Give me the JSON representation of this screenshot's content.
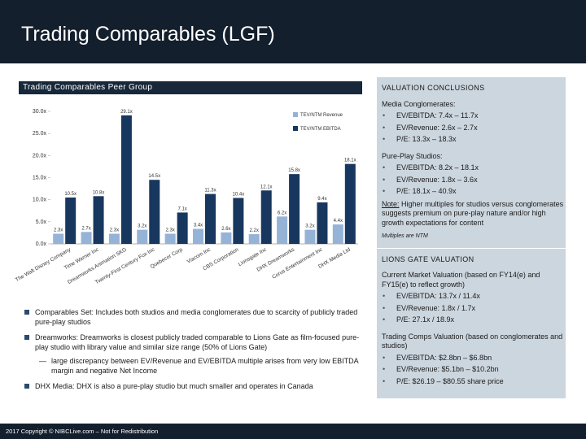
{
  "header": {
    "title": "Trading Comparables (LGF)"
  },
  "chart_data": {
    "type": "bar",
    "title": "Trading Comparables Peer Group",
    "categories": [
      "The Walt Disney Company",
      "Time Warner Inc",
      "Dreamworks Animation SKG",
      "Twenty-First Century Fox Inc",
      "Quebecor Corp",
      "Viacom Inc",
      "CBS Corporation",
      "Lionsgate Inc",
      "DHX Dreamworks",
      "Corus Entertainment Inc",
      "DHX Media Ltd"
    ],
    "series": [
      {
        "name": "TEV/NTM Revenue",
        "color": "#95b3d7",
        "values": [
          2.3,
          2.7,
          2.3,
          3.2,
          2.3,
          3.4,
          2.6,
          2.2,
          6.2,
          3.2,
          4.4
        ],
        "value_labels": [
          "2.3x",
          "2.7x",
          "2.3x",
          "3.2x",
          "2.3x",
          "3.4x",
          "2.6x",
          "2.2x",
          "6.2x",
          "3.2x",
          "4.4x"
        ]
      },
      {
        "name": "TEV/NTM EBITDA",
        "color": "#17375e",
        "values": [
          10.5,
          10.8,
          29.1,
          14.5,
          7.1,
          11.3,
          10.4,
          12.1,
          15.8,
          9.4,
          18.1
        ],
        "value_labels": [
          "10.5x",
          "10.8x",
          "29.1x",
          "14.5x",
          "7.1x",
          "11.3x",
          "10.4x",
          "12.1x",
          "15.8x",
          "9.4x",
          "18.1x"
        ]
      }
    ],
    "ylim": [
      0,
      30
    ],
    "yticks": [
      {
        "value": 0,
        "label": "0.0x"
      },
      {
        "value": 5,
        "label": "5.0x"
      },
      {
        "value": 10,
        "label": "10.0x"
      },
      {
        "value": 15,
        "label": "15.0x"
      },
      {
        "value": 20,
        "label": "20.0x"
      },
      {
        "value": 25,
        "label": "25.0x"
      },
      {
        "value": 30,
        "label": "30.0x"
      }
    ],
    "legend": "top-right"
  },
  "notes": [
    {
      "text": "Comparables Set: Includes both studios and media conglomerates due to scarcity of publicly traded pure-play studios"
    },
    {
      "text": "Dreamworks: Dreamworks is closest publicly traded comparable to Lions Gate as film-focused pure-play studio with library value and similar size range (50% of Lions Gate)",
      "sub": [
        "large discrepancy between EV/Revenue and EV/EBITDA multiple arises from very low EBITDA margin and negative Net Income"
      ]
    },
    {
      "text": "DHX Media: DHX is also a pure-play studio but much smaller and operates in Canada"
    }
  ],
  "conclusions": {
    "title": "VALUATION CONCLUSIONS",
    "groups": [
      {
        "heading": "Media Conglomerates:",
        "items": [
          "EV/EBITDA: 7.4x – 11.7x",
          "EV/Revenue: 2.6x – 2.7x",
          "P/E: 13.3x – 18.3x"
        ]
      },
      {
        "heading": "Pure-Play Studios:",
        "items": [
          "EV/EBITDA: 8.2x – 18.1x",
          "EV/Revenue: 1.8x – 3.6x",
          "P/E: 18.1x – 40.9x"
        ]
      }
    ],
    "note": {
      "label": "Note:",
      "text": "Higher multiples for studios versus conglomerates suggests premium on pure-play nature and/or high growth expectations for content"
    },
    "footnote": "Multiples are NTM"
  },
  "valuation": {
    "title": "LIONS GATE VALUATION",
    "groups": [
      {
        "heading": "Current Market Valuation (based on FY14(e) and FY15(e) to reflect growth)",
        "items": [
          "EV/EBITDA: 13.7x / 11.4x",
          "EV/Revenue: 1.8x / 1.7x",
          "P/E: 27.1x / 18.9x"
        ]
      },
      {
        "heading": "Trading Comps Valuation (based on conglomerates and studios)",
        "items": [
          "EV/EBITDA: $2.8bn – $6.8bn",
          "EV/Revenue: $5.1bn – $10.2bn",
          "P/E: $26.19 – $80.55 share price"
        ]
      }
    ]
  },
  "footer": "2017 Copyright © NIBCLive.com – Not for Redistribution"
}
